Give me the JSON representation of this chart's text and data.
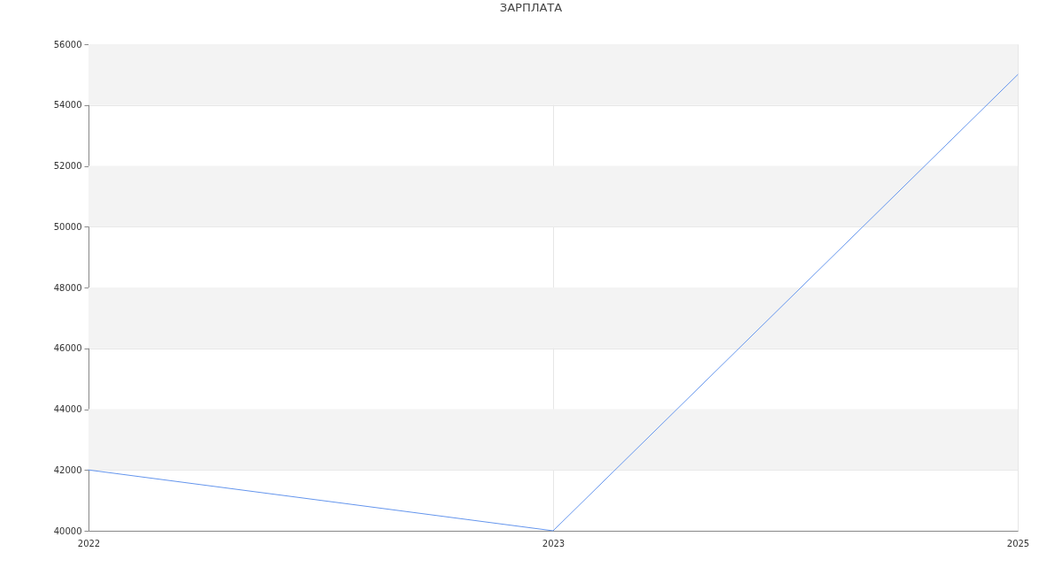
{
  "chart_data": {
    "type": "line",
    "title": "ЗАРПЛАТА",
    "categories": [
      "2022",
      "2023",
      "2025"
    ],
    "values": [
      42000,
      40000,
      55000
    ],
    "color": "#6495ed",
    "ylim": [
      40000,
      56000
    ],
    "yticks": [
      40000,
      42000,
      44000,
      46000,
      48000,
      50000,
      52000,
      54000,
      56000
    ],
    "grid": true,
    "bands": [
      {
        "axis": "y",
        "from": 42000,
        "to": 44000,
        "color": "#f3f3f3"
      },
      {
        "axis": "y",
        "from": 46000,
        "to": 48000,
        "color": "#f3f3f3"
      },
      {
        "axis": "y",
        "from": 50000,
        "to": 52000,
        "color": "#f3f3f3"
      },
      {
        "axis": "y",
        "from": 54000,
        "to": 56000,
        "color": "#f3f3f3"
      }
    ]
  }
}
